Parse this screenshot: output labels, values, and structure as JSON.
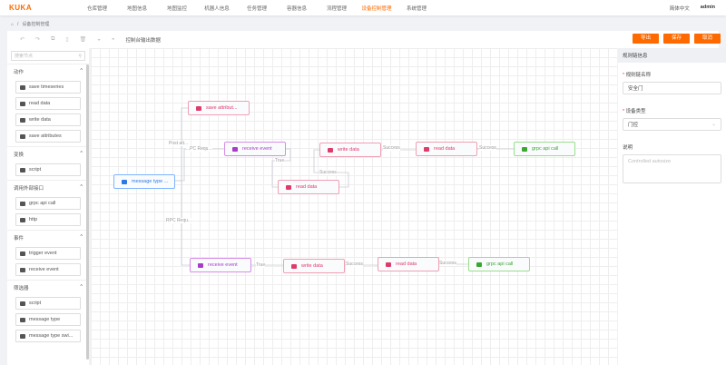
{
  "header": {
    "logo": "KUKA",
    "nav": [
      "仓库管理",
      "地图信息",
      "地图监控",
      "机器人信息",
      "任务管理",
      "容器信息",
      "流程管理",
      "设备控制管理",
      "系统管理"
    ],
    "active_index": 7,
    "language": "简体中文",
    "user": "admin"
  },
  "breadcrumb": {
    "home_icon": "home-icon",
    "sep": "/",
    "current": "设备控制管理"
  },
  "toolbar": {
    "console_output": "控制台输出数据",
    "export": "导出",
    "save": "保存",
    "cancel": "取消"
  },
  "left_panel": {
    "search_placeholder": "搜索节点",
    "sections": [
      {
        "title": "动作",
        "items": [
          "save timeseries",
          "read data",
          "write data",
          "save attributes"
        ]
      },
      {
        "title": "变换",
        "items": [
          "script"
        ]
      },
      {
        "title": "调用外部接口",
        "items": [
          "grpc api call",
          "http"
        ]
      },
      {
        "title": "事件",
        "items": [
          "trigger event",
          "receive event"
        ]
      },
      {
        "title": "筛选器",
        "items": [
          "script",
          "message type",
          "message type swi..."
        ]
      }
    ]
  },
  "canvas": {
    "nodes": [
      {
        "label": "save attribut...",
        "type": "red"
      },
      {
        "label": "receive event",
        "type": "pur"
      },
      {
        "label": "write data",
        "type": "red"
      },
      {
        "label": "read data",
        "type": "red"
      },
      {
        "label": "grpc api call",
        "type": "grn"
      },
      {
        "label": "read data",
        "type": "red"
      },
      {
        "label": "message type ...",
        "type": "blu"
      },
      {
        "label": "receive event",
        "type": "pur"
      },
      {
        "label": "write data",
        "type": "red"
      },
      {
        "label": "read data",
        "type": "red"
      },
      {
        "label": "grpc api call",
        "type": "grn"
      }
    ],
    "edge_labels": [
      "Post att...",
      "...PC Requ...",
      "True",
      "Success",
      "Success",
      "Success",
      "RPC Requ...",
      "True",
      "Success",
      "Success"
    ]
  },
  "right_panel": {
    "title": "规则链信息",
    "name_label": "规则链名称",
    "name_value": "安全门",
    "type_label": "设备类型",
    "type_value": "门控",
    "desc_label": "说明",
    "desc_placeholder": "Controlled autosize"
  },
  "colors": {
    "accent": "#ff6a00",
    "action": "#e03a6a",
    "event": "#a63cc8",
    "external": "#3aa830",
    "filter": "#2a7ae6"
  }
}
